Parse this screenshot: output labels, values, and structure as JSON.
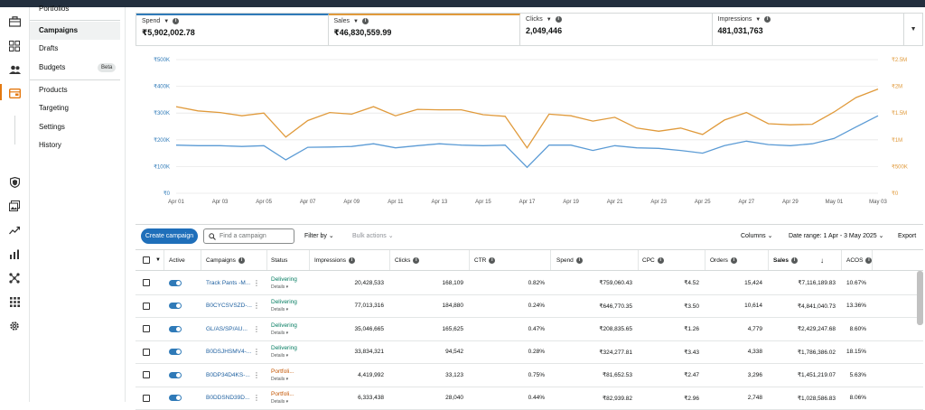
{
  "subnav": {
    "items": [
      "Portfolios",
      "Campaigns",
      "Drafts",
      "Budgets",
      "Products",
      "Targeting",
      "Settings",
      "History"
    ],
    "beta_badge": "Beta"
  },
  "metrics": [
    {
      "label": "Spend",
      "value": "₹5,902,002.78"
    },
    {
      "label": "Sales",
      "value": "₹46,830,559.99"
    },
    {
      "label": "Clicks",
      "value": "2,049,446"
    },
    {
      "label": "Impressions",
      "value": "481,031,763"
    }
  ],
  "chart_data": {
    "type": "line",
    "x": [
      "Apr 01",
      "Apr 02",
      "Apr 03",
      "Apr 04",
      "Apr 05",
      "Apr 06",
      "Apr 07",
      "Apr 08",
      "Apr 09",
      "Apr 10",
      "Apr 11",
      "Apr 12",
      "Apr 13",
      "Apr 14",
      "Apr 15",
      "Apr 16",
      "Apr 17",
      "Apr 18",
      "Apr 19",
      "Apr 20",
      "Apr 21",
      "Apr 22",
      "Apr 23",
      "Apr 24",
      "Apr 25",
      "Apr 26",
      "Apr 27",
      "Apr 28",
      "Apr 29",
      "Apr 30",
      "May 01",
      "May 02",
      "May 03"
    ],
    "x_tick_labels": [
      "Apr 01",
      "Apr 03",
      "Apr 05",
      "Apr 07",
      "Apr 09",
      "Apr 11",
      "Apr 13",
      "Apr 15",
      "Apr 17",
      "Apr 19",
      "Apr 21",
      "Apr 23",
      "Apr 25",
      "Apr 27",
      "Apr 29",
      "May 01",
      "May 03"
    ],
    "left_axis": {
      "ticks": [
        "₹0",
        "₹100K",
        "₹200K",
        "₹300K",
        "₹400K",
        "₹500K"
      ],
      "ylim": [
        0,
        500000
      ]
    },
    "right_axis": {
      "ticks": [
        "₹0",
        "₹500K",
        "₹1M",
        "₹1.5M",
        "₹2M",
        "₹2.5M"
      ],
      "ylim": [
        0,
        2500000
      ]
    },
    "series": [
      {
        "axis": "left",
        "color": "#5b9bd5",
        "values": [
          180000,
          178000,
          178000,
          175000,
          178000,
          125000,
          172000,
          173000,
          175000,
          185000,
          170000,
          178000,
          185000,
          180000,
          178000,
          180000,
          97000,
          180000,
          180000,
          160000,
          178000,
          170000,
          168000,
          160000,
          150000,
          178000,
          195000,
          182000,
          178000,
          185000,
          205000,
          248000,
          290000
        ]
      },
      {
        "axis": "right",
        "color": "#e09a3b",
        "values": [
          1620000,
          1540000,
          1510000,
          1450000,
          1500000,
          1050000,
          1360000,
          1510000,
          1480000,
          1620000,
          1450000,
          1570000,
          1560000,
          1560000,
          1470000,
          1440000,
          850000,
          1480000,
          1450000,
          1350000,
          1420000,
          1220000,
          1160000,
          1220000,
          1100000,
          1370000,
          1510000,
          1300000,
          1280000,
          1290000,
          1520000,
          1790000,
          1950000
        ]
      }
    ],
    "grid": true
  },
  "toolbar": {
    "create": "Create campaign",
    "search_placeholder": "Find a campaign",
    "filter_by": "Filter by",
    "bulk_actions": "Bulk actions",
    "columns": "Columns",
    "date_range": "Date range: 1 Apr - 3 May 2025",
    "export": "Export"
  },
  "table": {
    "headers": {
      "active": "Active",
      "campaigns": "Campaigns",
      "status": "Status",
      "impressions": "Impressions",
      "clicks": "Clicks",
      "ctr": "CTR",
      "spend": "Spend",
      "cpc": "CPC",
      "orders": "Orders",
      "sales": "Sales",
      "acos": "ACOS"
    },
    "details_label": "Details",
    "rows": [
      {
        "campaign": "Track Pants -M...",
        "status": "Delivering",
        "status_type": "green",
        "impressions": "20,428,533",
        "clicks": "168,109",
        "ctr": "0.82%",
        "spend": "₹759,060.43",
        "cpc": "₹4.52",
        "orders": "15,424",
        "sales": "₹7,116,189.83",
        "acos": "10.67%"
      },
      {
        "campaign": "B0CYCSVSZD-...",
        "status": "Delivering",
        "status_type": "green",
        "impressions": "77,013,316",
        "clicks": "184,880",
        "ctr": "0.24%",
        "spend": "₹646,770.35",
        "cpc": "₹3.50",
        "orders": "10,614",
        "sales": "₹4,841,040.73",
        "acos": "13.36%"
      },
      {
        "campaign": "GL/AS/SP/AU...",
        "status": "Delivering",
        "status_type": "green",
        "impressions": "35,046,665",
        "clicks": "165,625",
        "ctr": "0.47%",
        "spend": "₹208,835.65",
        "cpc": "₹1.26",
        "orders": "4,779",
        "sales": "₹2,429,247.68",
        "acos": "8.60%"
      },
      {
        "campaign": "B0DSJHSMV4-...",
        "status": "Delivering",
        "status_type": "green",
        "impressions": "33,834,321",
        "clicks": "94,542",
        "ctr": "0.28%",
        "spend": "₹324,277.81",
        "cpc": "₹3.43",
        "orders": "4,338",
        "sales": "₹1,786,386.02",
        "acos": "18.15%"
      },
      {
        "campaign": "B0DP34D4KS-...",
        "status": "Portfoli...",
        "status_type": "orange",
        "impressions": "4,419,992",
        "clicks": "33,123",
        "ctr": "0.75%",
        "spend": "₹81,652.53",
        "cpc": "₹2.47",
        "orders": "3,296",
        "sales": "₹1,451,219.07",
        "acos": "5.63%"
      },
      {
        "campaign": "B0DDSND39D...",
        "status": "Portfoli...",
        "status_type": "orange",
        "impressions": "6,333,438",
        "clicks": "28,040",
        "ctr": "0.44%",
        "spend": "₹82,939.82",
        "cpc": "₹2.96",
        "orders": "2,748",
        "sales": "₹1,028,586.83",
        "acos": "8.06%"
      }
    ]
  }
}
